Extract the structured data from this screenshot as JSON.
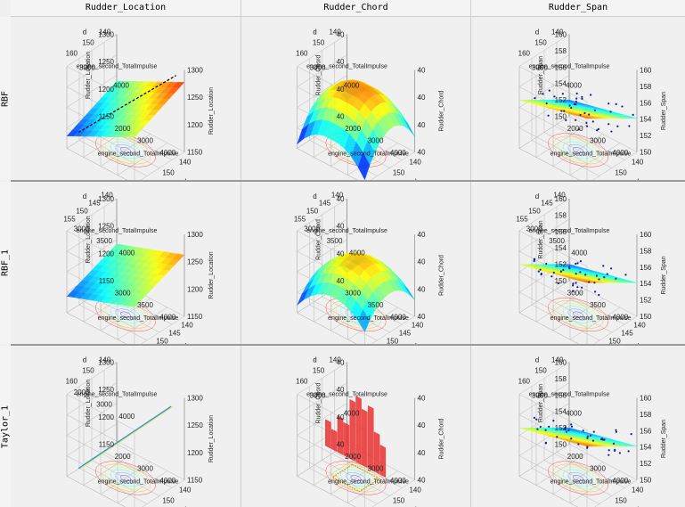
{
  "columns": [
    "Rudder_Location",
    "Rudder_Chord",
    "Rudder_Span"
  ],
  "rows": [
    "RBF",
    "RBF_1",
    "Taylor_1"
  ],
  "chart_data": [
    {
      "type": "surface3d",
      "model": "RBF",
      "response": "Rudder_Location",
      "surface": "plane-diagonal",
      "xlabel": "engine_second_TotalImpulse",
      "ylabel": "d",
      "zlabel": "Rudder_Location",
      "xticks": [
        "2000",
        "3000",
        "4000"
      ],
      "yticks": [
        "140",
        "150",
        "160"
      ],
      "zticks": [
        "1150",
        "1200",
        "1250",
        "1300"
      ],
      "top_xticks": [
        "3000",
        "4000"
      ],
      "top_yticks": [
        "140",
        "150",
        "160"
      ]
    },
    {
      "type": "surface3d",
      "model": "RBF",
      "response": "Rudder_Chord",
      "surface": "dome",
      "xlabel": "engine_second_TotalImpulse",
      "ylabel": "d",
      "zlabel": "Rudder_Chord",
      "xticks": [
        "2000",
        "3000",
        "4000"
      ],
      "yticks": [
        "140",
        "150",
        "160"
      ],
      "zticks": [
        "40",
        "40",
        "40",
        "40"
      ],
      "top_xticks": [
        "3000",
        "4000"
      ],
      "top_yticks": [
        "140",
        "150",
        "160"
      ]
    },
    {
      "type": "surface3d",
      "model": "RBF",
      "response": "Rudder_Span",
      "surface": "plane-points",
      "xlabel": "engine_second_TotalImpulse",
      "ylabel": "d",
      "zlabel": "Rudder_Span",
      "xticks": [
        "2000",
        "3000",
        "4000"
      ],
      "yticks": [
        "140",
        "150",
        "160"
      ],
      "zticks": [
        "150",
        "152",
        "154",
        "156",
        "158",
        "160"
      ],
      "top_xticks": [
        "3000",
        "4000"
      ],
      "top_yticks": [
        "140",
        "150",
        "160"
      ]
    },
    {
      "type": "surface3d",
      "model": "RBF_1",
      "response": "Rudder_Location",
      "surface": "plane",
      "xlabel": "engine_second_TotalImpulse",
      "ylabel": "d",
      "zlabel": "Rudder_Location",
      "xticks": [
        "3000",
        "3500",
        "4000"
      ],
      "yticks": [
        "140",
        "145",
        "150",
        "155"
      ],
      "zticks": [
        "1150",
        "1200",
        "1250",
        "1300"
      ],
      "top_xticks": [
        "3000",
        "3500",
        "4000"
      ],
      "top_yticks": [
        "140",
        "145",
        "150",
        "155"
      ]
    },
    {
      "type": "surface3d",
      "model": "RBF_1",
      "response": "Rudder_Chord",
      "surface": "dome-flat",
      "xlabel": "engine_second_TotalImpulse",
      "ylabel": "d",
      "zlabel": "Rudder_Chord",
      "xticks": [
        "3000",
        "3500",
        "4000"
      ],
      "yticks": [
        "140",
        "145",
        "150",
        "155"
      ],
      "zticks": [
        "40",
        "40",
        "40",
        "40"
      ],
      "top_xticks": [
        "3000",
        "3500",
        "4000"
      ],
      "top_yticks": [
        "140",
        "145",
        "150",
        "155"
      ]
    },
    {
      "type": "surface3d",
      "model": "RBF_1",
      "response": "Rudder_Span",
      "surface": "plane-points",
      "xlabel": "engine_second_TotalImpulse",
      "ylabel": "d",
      "zlabel": "Rudder_Span",
      "xticks": [
        "3000",
        "3500",
        "4000"
      ],
      "yticks": [
        "140",
        "145",
        "150",
        "155"
      ],
      "zticks": [
        "150",
        "152",
        "154",
        "156",
        "158",
        "160"
      ],
      "top_xticks": [
        "3000",
        "3500",
        "4000"
      ],
      "top_yticks": [
        "140",
        "145",
        "150",
        "155"
      ]
    },
    {
      "type": "surface3d",
      "model": "Taylor_1",
      "response": "Rudder_Location",
      "surface": "line",
      "xlabel": "engine_second_TotalImpulse",
      "ylabel": "d",
      "zlabel": "Rudder_Location",
      "xticks": [
        "2000",
        "3000",
        "4000"
      ],
      "yticks": [
        "140",
        "150",
        "160"
      ],
      "zticks": [
        "1150",
        "1200",
        "1250",
        "1300"
      ],
      "top_xticks": [
        "2000",
        "3000",
        "4000"
      ],
      "top_yticks": [
        "140",
        "150",
        "160"
      ]
    },
    {
      "type": "surface3d",
      "model": "Taylor_1",
      "response": "Rudder_Chord",
      "surface": "bars",
      "xlabel": "engine_second_TotalImpulse",
      "ylabel": "d",
      "zlabel": "Rudder_Chord",
      "xticks": [
        "2000",
        "3000",
        "4000"
      ],
      "yticks": [
        "140",
        "150",
        "160"
      ],
      "zticks": [
        "40",
        "40",
        "40",
        "40"
      ],
      "top_xticks": [
        "3000",
        "4000"
      ],
      "top_yticks": [
        "140",
        "150",
        "160"
      ]
    },
    {
      "type": "surface3d",
      "model": "Taylor_1",
      "response": "Rudder_Span",
      "surface": "plane-points",
      "xlabel": "engine_second_TotalImpulse",
      "ylabel": "d",
      "zlabel": "Rudder_Span",
      "xticks": [
        "2000",
        "3000",
        "4000"
      ],
      "yticks": [
        "140",
        "150",
        "160"
      ],
      "zticks": [
        "150",
        "152",
        "154",
        "156",
        "158",
        "160"
      ],
      "top_xticks": [
        "3000",
        "4000"
      ],
      "top_yticks": [
        "140",
        "150",
        "160"
      ]
    }
  ]
}
